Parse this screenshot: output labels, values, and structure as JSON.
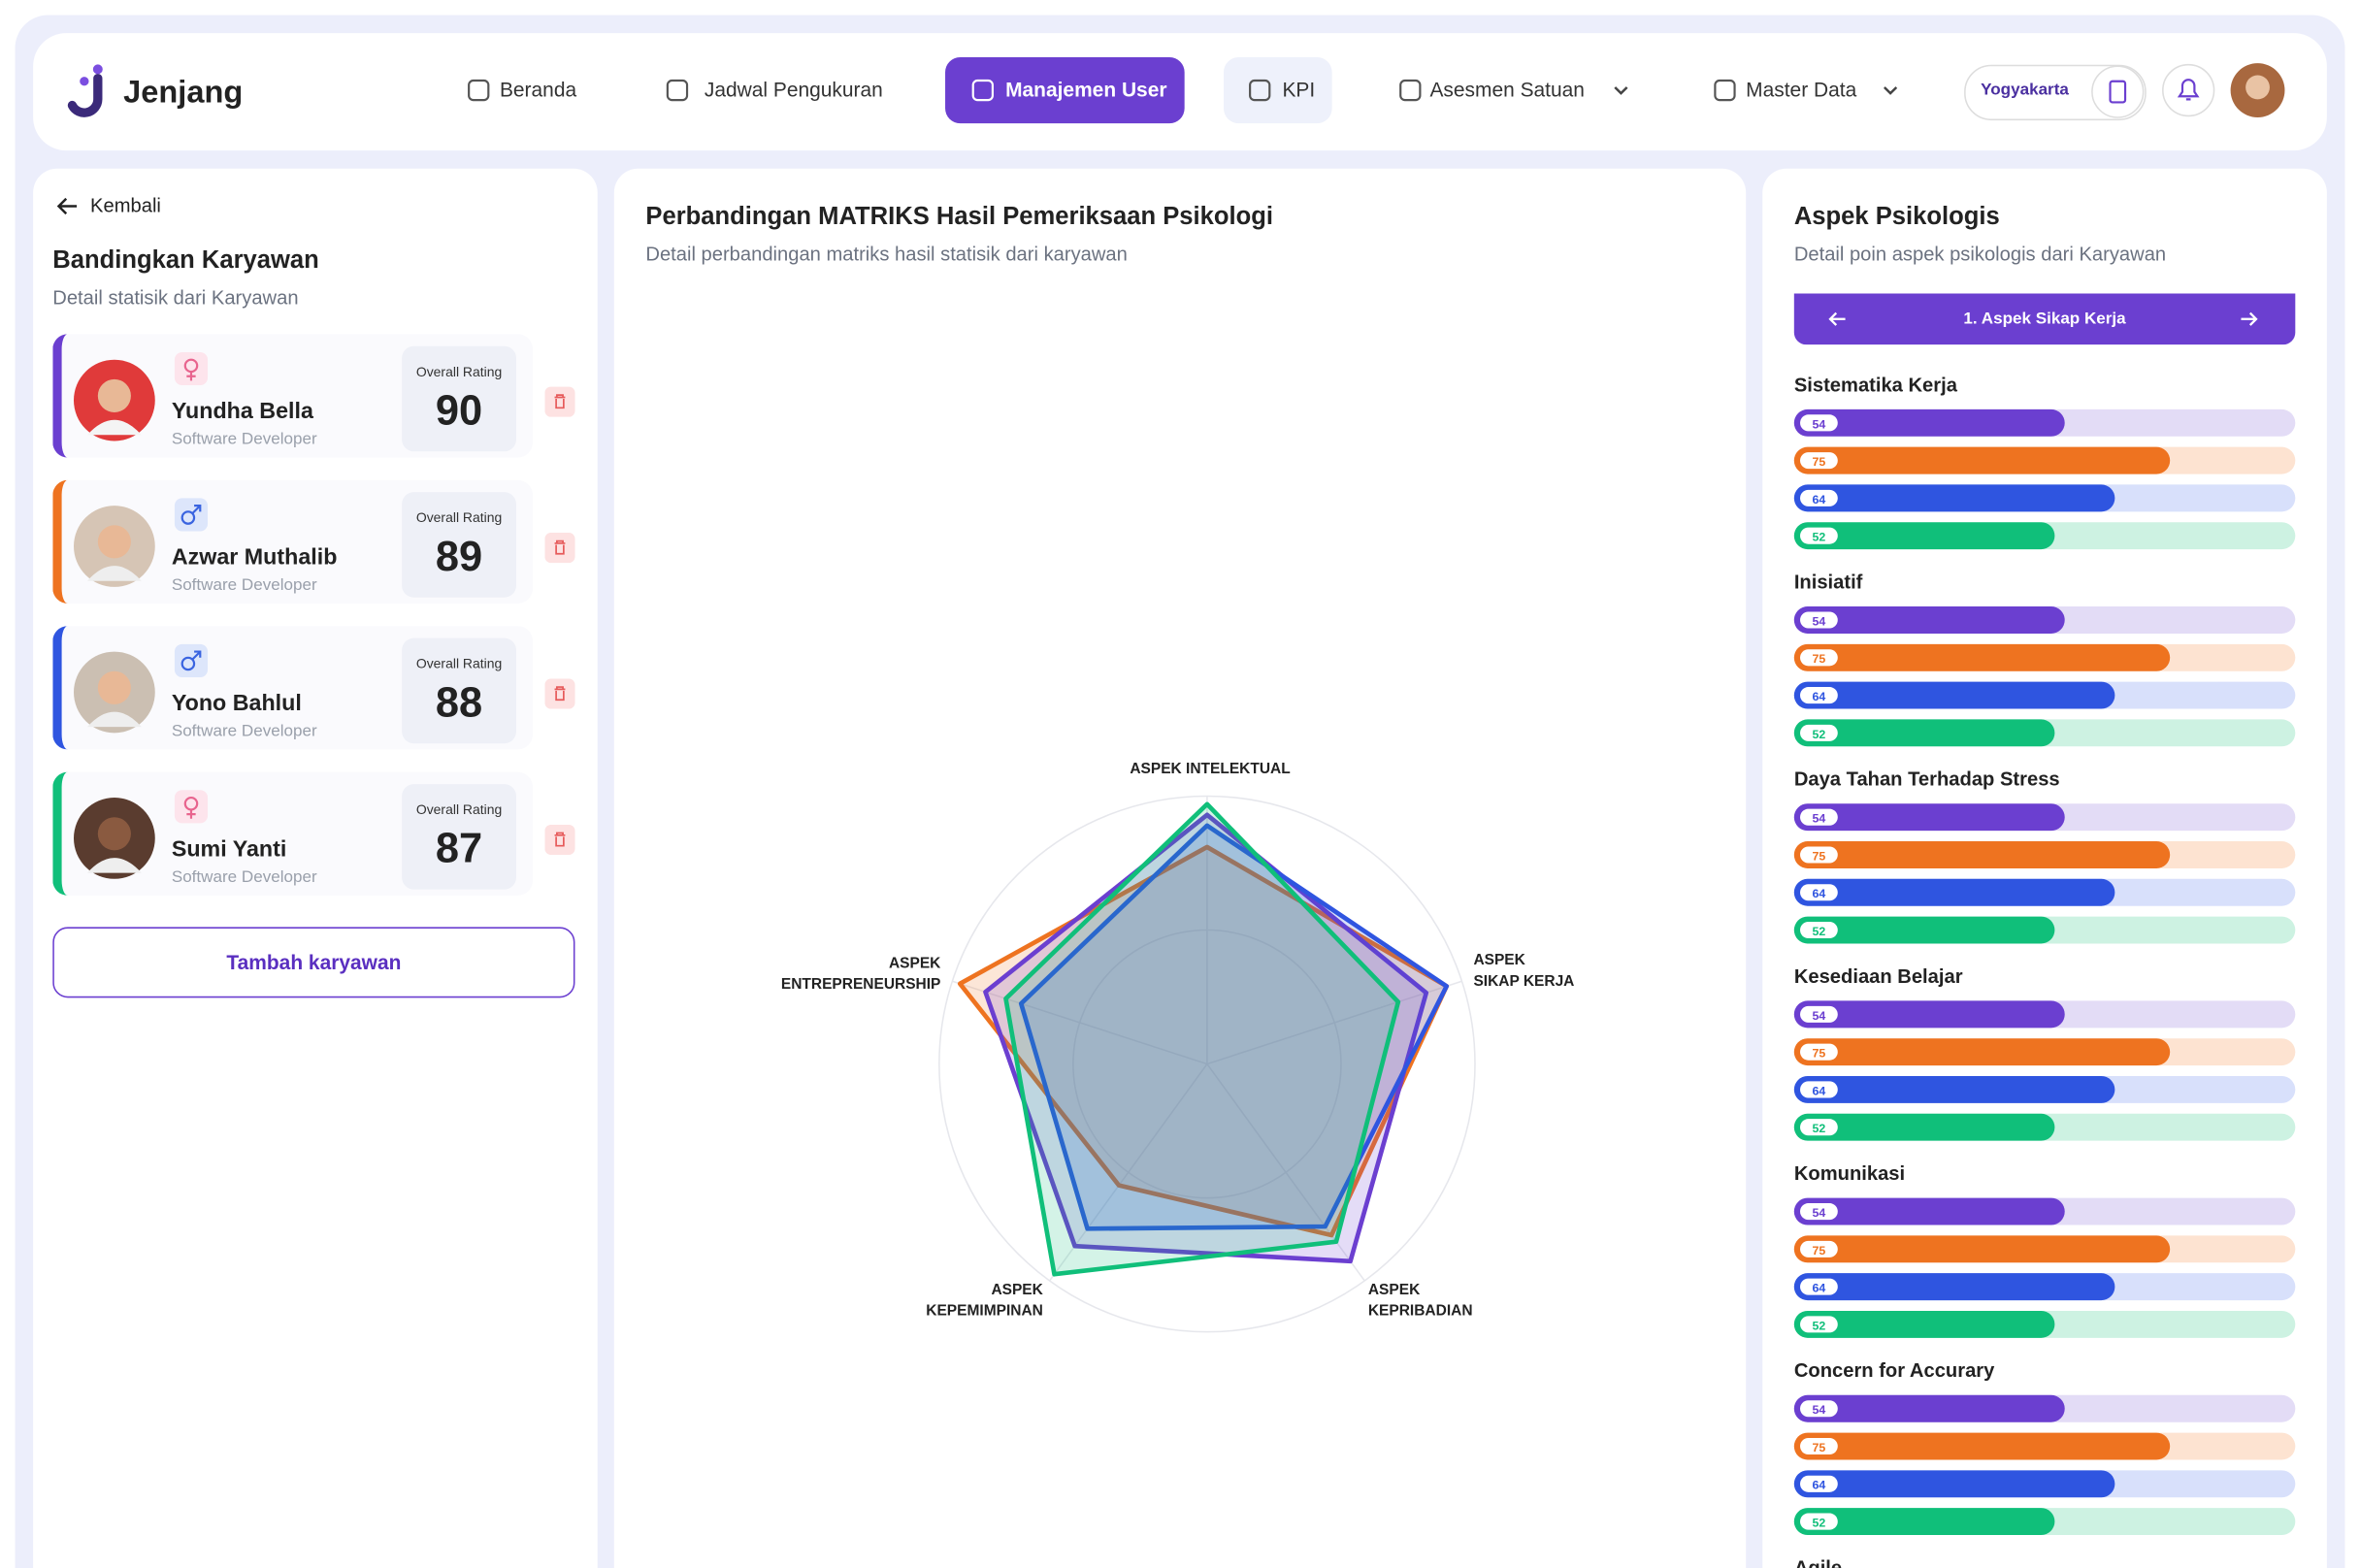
{
  "header": {
    "brand": "Jenjang",
    "nav": [
      "Beranda",
      "Jadwal Pengukuran",
      "Manajemen User",
      "KPI",
      "Asesmen Satuan",
      "Master Data"
    ],
    "location": "Yogyakarta"
  },
  "compare": {
    "back": "Kembali",
    "title": "Bandingkan Karyawan",
    "subtitle": "Detail statisik dari Karyawan",
    "rating_label": "Overall Rating",
    "employees": [
      {
        "name": "Yundha Bella",
        "role": "Software Developer",
        "gender": "female",
        "rating": 90,
        "color": "#6b3fd0"
      },
      {
        "name": "Azwar Muthalib",
        "role": "Software Developer",
        "gender": "male",
        "rating": 89,
        "color": "#ee7320"
      },
      {
        "name": "Yono Bahlul",
        "role": "Software Developer",
        "gender": "male",
        "rating": 88,
        "color": "#2f55e0"
      },
      {
        "name": "Sumi Yanti",
        "role": "Software Developer",
        "gender": "female",
        "rating": 87,
        "color": "#10bf7a"
      }
    ],
    "add_button": "Tambah karyawan"
  },
  "chart_data": {
    "type": "radar",
    "title": "Perbandingan MATRIKS Hasil Pemeriksaan Psikologi",
    "subtitle": "Detail perbandingan matriks hasil statisik dari karyawan",
    "categories": [
      [
        "ASPEK INTELEKTUAL"
      ],
      [
        "ASPEK",
        "SIKAP KERJA"
      ],
      [
        "ASPEK",
        "KEPRIBADIAN"
      ],
      [
        "ASPEK",
        "KEPEMIMPINAN"
      ],
      [
        "ASPEK",
        "ENTREPRENEURSHIP"
      ]
    ],
    "ylim": [
      0,
      100
    ],
    "yticks": [
      50,
      100
    ],
    "grid": true,
    "series": [
      {
        "color": "#ee7320",
        "values": [
          81,
          94,
          79,
          56,
          97
        ]
      },
      {
        "color": "#6b3fd0",
        "values": [
          93,
          86,
          91,
          84,
          87
        ]
      },
      {
        "color": "#2f55e0",
        "values": [
          89,
          94,
          75,
          76,
          73
        ]
      },
      {
        "color": "#10bf7a",
        "values": [
          97,
          75,
          82,
          97,
          79
        ]
      }
    ]
  },
  "aspects": {
    "title": "Aspek Psikologis",
    "subtitle": "Detail poin aspek psikologis dari Karyawan",
    "pager": "1. Aspek Sikap Kerja",
    "xlim": [
      0,
      100
    ],
    "colors": [
      "#6b3fd0",
      "#ee7320",
      "#2f55e0",
      "#10bf7a"
    ],
    "track_colors": [
      "#e3dcf6",
      "#fde3d1",
      "#d8e0fb",
      "#cdf2e2"
    ],
    "groups": [
      {
        "name": "Sistematika Kerja",
        "values": [
          54,
          75,
          64,
          52
        ]
      },
      {
        "name": "Inisiatif",
        "values": [
          54,
          75,
          64,
          52
        ]
      },
      {
        "name": "Daya Tahan Terhadap Stress",
        "values": [
          54,
          75,
          64,
          52
        ]
      },
      {
        "name": "Kesediaan Belajar",
        "values": [
          54,
          75,
          64,
          52
        ]
      },
      {
        "name": "Komunikasi",
        "values": [
          54,
          75,
          64,
          52
        ]
      },
      {
        "name": "Concern for Accurary",
        "values": [
          54,
          75,
          64,
          52
        ]
      },
      {
        "name": "Agile"
      }
    ]
  }
}
